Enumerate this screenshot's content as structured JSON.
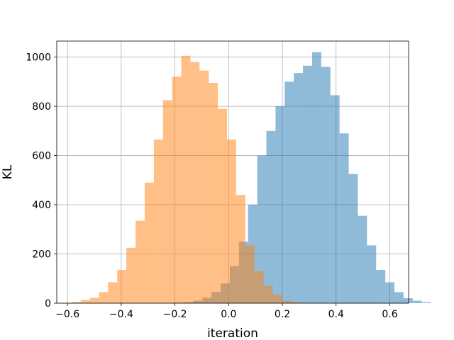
{
  "chart_data": {
    "type": "histogram",
    "title": "",
    "xlabel": "iteration",
    "ylabel": "KL",
    "xlim": [
      -0.64,
      0.67
    ],
    "ylim": [
      0,
      1065
    ],
    "xticks": [
      -0.6,
      -0.4,
      -0.2,
      0.0,
      0.2,
      0.4,
      0.6
    ],
    "xtick_labels": [
      "−0.6",
      "−0.4",
      "−0.2",
      "0.0",
      "0.2",
      "0.4",
      "0.6"
    ],
    "yticks": [
      0,
      200,
      400,
      600,
      800,
      1000
    ],
    "ytick_labels": [
      "0",
      "200",
      "400",
      "600",
      "800",
      "1000"
    ],
    "grid": true,
    "legend": false,
    "series": [
      {
        "color": "#1f77b4",
        "alpha": 0.5,
        "bin_start": -0.2,
        "bin_width": 0.03405,
        "counts": [
          2,
          4,
          10,
          22,
          45,
          80,
          150,
          250,
          400,
          600,
          700,
          800,
          900,
          935,
          965,
          1020,
          960,
          845,
          690,
          525,
          355,
          235,
          135,
          85,
          45,
          20,
          10,
          4
        ]
      },
      {
        "color": "#ff7f0e",
        "alpha": 0.5,
        "bin_start": -0.585,
        "bin_width": 0.03405,
        "counts": [
          5,
          13,
          22,
          45,
          85,
          135,
          225,
          335,
          490,
          665,
          825,
          920,
          1005,
          980,
          945,
          895,
          790,
          665,
          440,
          235,
          130,
          70,
          35,
          10,
          4,
          2
        ]
      }
    ]
  }
}
